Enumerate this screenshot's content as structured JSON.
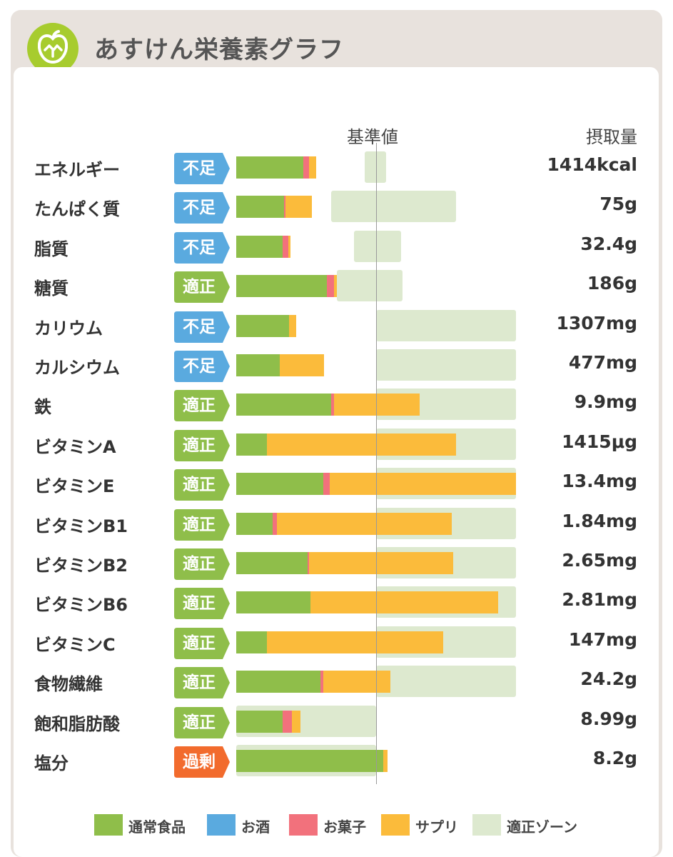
{
  "header": {
    "title": "あすけん栄養素グラフ",
    "logo_icon": "apple-scale-icon"
  },
  "columns": {
    "reference": "基準値",
    "intake": "摂取量"
  },
  "colors": {
    "normal_food": "#8fbe4a",
    "alcohol": "#5aaadf",
    "snack": "#f2717c",
    "supplement": "#fbbb3b",
    "zone": "#dde9cf",
    "status_lack": "#5aaadf",
    "status_ok": "#8fbe4a",
    "status_over": "#f26b2d"
  },
  "legend": [
    {
      "label": "通常食品",
      "color": "#8fbe4a"
    },
    {
      "label": "お酒",
      "color": "#5aaadf"
    },
    {
      "label": "お菓子",
      "color": "#f2717c"
    },
    {
      "label": "サプリ",
      "color": "#fbbb3b"
    },
    {
      "label": "適正ゾーン",
      "color": "#dde9cf"
    }
  ],
  "chart_data": {
    "type": "bar",
    "orientation": "horizontal",
    "stacked": true,
    "value_unit": "percent_of_reference",
    "reference_line": 100,
    "series_names": [
      "通常食品",
      "お酒",
      "お菓子",
      "サプリ"
    ],
    "rows": [
      {
        "name": "エネルギー",
        "status": "不足",
        "status_key": "lack",
        "amount": "1414kcal",
        "zone": [
          92,
          107
        ],
        "segments": [
          48,
          0,
          4,
          5
        ]
      },
      {
        "name": "たんぱく質",
        "status": "不足",
        "status_key": "lack",
        "amount": "75g",
        "zone": [
          68,
          157
        ],
        "segments": [
          34,
          0,
          1,
          19
        ]
      },
      {
        "name": "脂質",
        "status": "不足",
        "status_key": "lack",
        "amount": "32.4g",
        "zone": [
          84,
          118
        ],
        "segments": [
          33,
          0,
          4,
          2
        ]
      },
      {
        "name": "糖質",
        "status": "適正",
        "status_key": "ok",
        "amount": "186g",
        "zone": [
          72,
          119
        ],
        "segments": [
          65,
          0,
          5,
          2
        ]
      },
      {
        "name": "カリウム",
        "status": "不足",
        "status_key": "lack",
        "amount": "1307mg",
        "zone": [
          100,
          200
        ],
        "segments": [
          38,
          0,
          0,
          5
        ]
      },
      {
        "name": "カルシウム",
        "status": "不足",
        "status_key": "lack",
        "amount": "477mg",
        "zone": [
          100,
          200
        ],
        "segments": [
          31,
          0,
          0,
          32
        ]
      },
      {
        "name": "鉄",
        "status": "適正",
        "status_key": "ok",
        "amount": "9.9mg",
        "zone": [
          100,
          200
        ],
        "segments": [
          68,
          0,
          2,
          61
        ]
      },
      {
        "name": "ビタミンA",
        "status": "適正",
        "status_key": "ok",
        "amount": "1415μg",
        "zone": [
          100,
          200
        ],
        "segments": [
          22,
          0,
          0,
          135
        ]
      },
      {
        "name": "ビタミンE",
        "status": "適正",
        "status_key": "ok",
        "amount": "13.4mg",
        "zone": [
          100,
          200
        ],
        "segments": [
          62,
          0,
          5,
          133
        ]
      },
      {
        "name": "ビタミンB1",
        "status": "適正",
        "status_key": "ok",
        "amount": "1.84mg",
        "zone": [
          100,
          200
        ],
        "segments": [
          26,
          0,
          3,
          125
        ]
      },
      {
        "name": "ビタミンB2",
        "status": "適正",
        "status_key": "ok",
        "amount": "2.65mg",
        "zone": [
          100,
          200
        ],
        "segments": [
          51,
          0,
          1,
          103
        ]
      },
      {
        "name": "ビタミンB6",
        "status": "適正",
        "status_key": "ok",
        "amount": "2.81mg",
        "zone": [
          100,
          200
        ],
        "segments": [
          53,
          0,
          0,
          134
        ]
      },
      {
        "name": "ビタミンC",
        "status": "適正",
        "status_key": "ok",
        "amount": "147mg",
        "zone": [
          100,
          200
        ],
        "segments": [
          22,
          0,
          0,
          126
        ]
      },
      {
        "name": "食物繊維",
        "status": "適正",
        "status_key": "ok",
        "amount": "24.2g",
        "zone": [
          100,
          200
        ],
        "segments": [
          60,
          0,
          2,
          48
        ]
      },
      {
        "name": "飽和脂肪酸",
        "status": "適正",
        "status_key": "ok",
        "amount": "8.99g",
        "zone": [
          0,
          100
        ],
        "segments": [
          33,
          0,
          7,
          6
        ]
      },
      {
        "name": "塩分",
        "status": "過剰",
        "status_key": "over",
        "amount": "8.2g",
        "zone": [
          0,
          100
        ],
        "segments": [
          105,
          0,
          0,
          3
        ]
      }
    ]
  }
}
